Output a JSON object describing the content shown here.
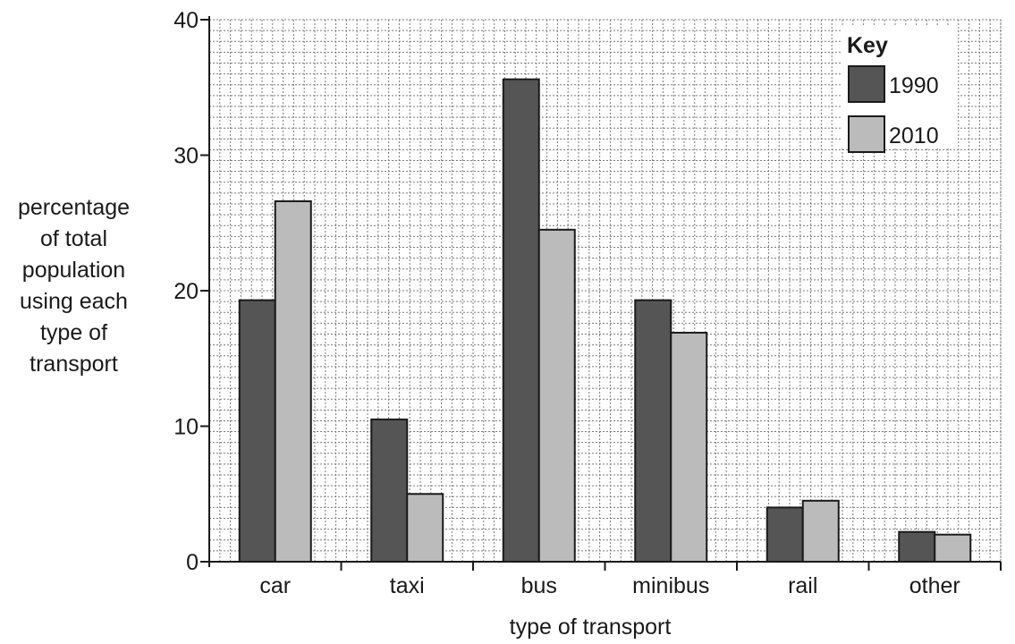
{
  "chart_data": {
    "type": "bar",
    "xlabel": "type of transport",
    "ylabel": "percentage\nof total\npopulation\nusing each\ntype of\ntransport",
    "categories": [
      "car",
      "taxi",
      "bus",
      "minibus",
      "rail",
      "other"
    ],
    "series": [
      {
        "name": "1990",
        "values": [
          19.3,
          10.5,
          35.6,
          19.3,
          4.0,
          2.2
        ]
      },
      {
        "name": "2010",
        "values": [
          26.6,
          5.0,
          24.5,
          16.9,
          4.5,
          2.0
        ]
      }
    ],
    "ylim": [
      0,
      40
    ],
    "yticks": [
      0,
      10,
      20,
      30,
      40
    ],
    "grid": true,
    "legend": {
      "title": "Key",
      "placement": "top-right"
    },
    "colors": {
      "1990": "#555555",
      "2010": "#bbbbbb",
      "grid": "#7a7a7a",
      "axis": "#1a1a1a"
    }
  }
}
